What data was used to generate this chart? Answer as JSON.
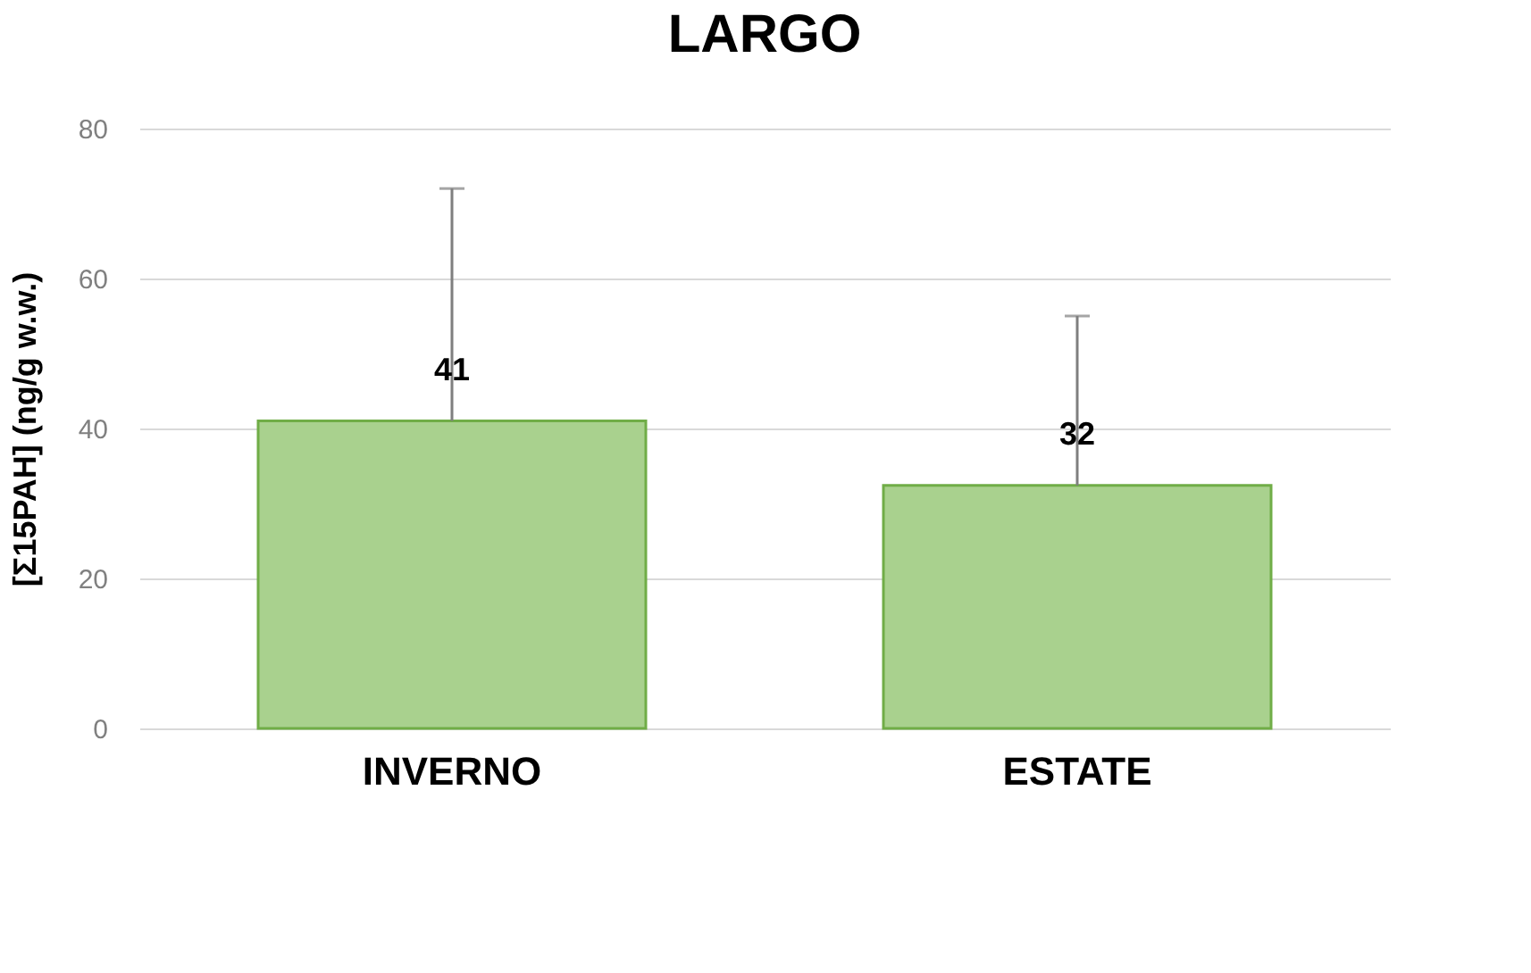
{
  "chart_data": {
    "type": "bar",
    "title": "LARGO",
    "ylabel": "[Σ15PAH] (ng/g w.w.)",
    "categories": [
      "INVERNO",
      "ESTATE"
    ],
    "values": [
      41,
      32.4
    ],
    "value_labels": [
      "41",
      "32"
    ],
    "errors": [
      [
        41,
        72
      ],
      [
        32.4,
        55
      ]
    ],
    "color": "#a9d18e",
    "ylim": [
      0,
      80
    ],
    "yticks": [
      0,
      20,
      40,
      60,
      80
    ],
    "grid": "y"
  }
}
